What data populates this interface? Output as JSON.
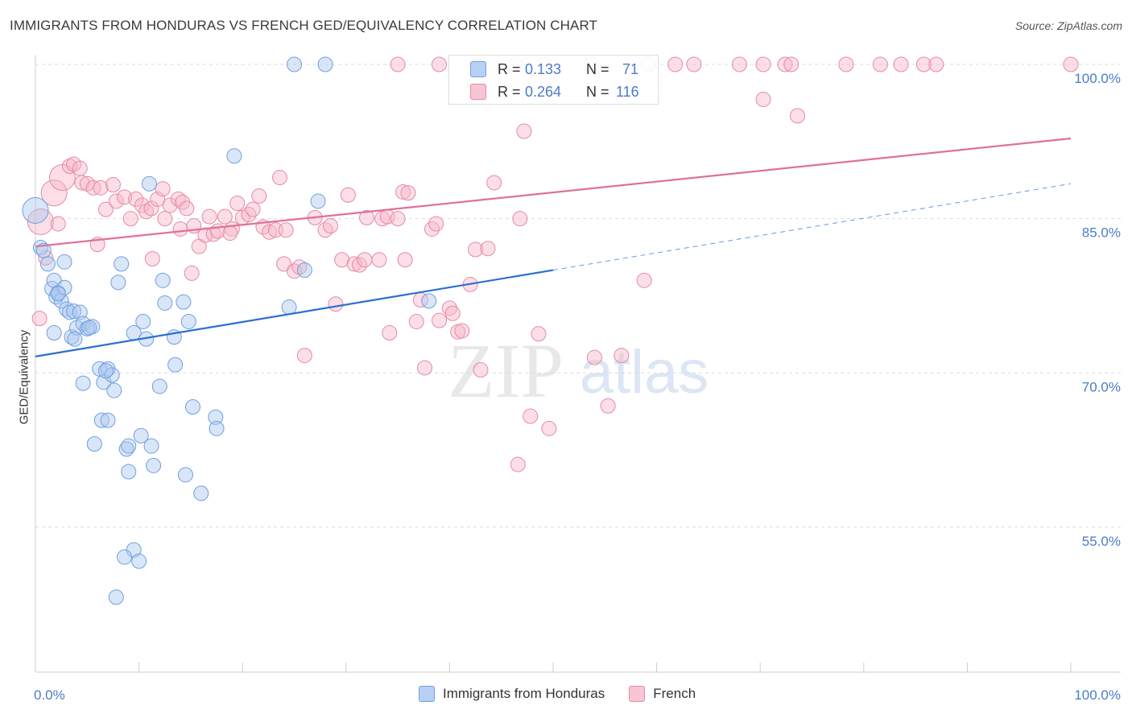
{
  "title": "IMMIGRANTS FROM HONDURAS VS FRENCH GED/EQUIVALENCY CORRELATION CHART",
  "source": "Source: ZipAtlas.com",
  "watermark": {
    "zip": "ZIP",
    "atlas": "atlas"
  },
  "stats": [
    {
      "r_label": "R =",
      "r_value": "0.133",
      "n_label": "N =",
      "n_value": "71",
      "color": "#6fa0de",
      "fill": "#b8d0f3"
    },
    {
      "r_label": "R =",
      "r_value": "0.264",
      "n_label": "N =",
      "n_value": "116",
      "color": "#e58aa6",
      "fill": "#f8c5d3"
    }
  ],
  "legend": [
    {
      "label": "Immigrants from Honduras",
      "color": "#6fa0de",
      "fill": "#b8d0f3"
    },
    {
      "label": "French",
      "color": "#e58aa6",
      "fill": "#f8c5d3"
    }
  ],
  "colors": {
    "blue_line": "#2a6fcf",
    "pink_line": "#e0709a",
    "axis_text": "#4a7cc9",
    "grid": "#dddddd"
  },
  "chart_data": {
    "type": "scatter",
    "title": "IMMIGRANTS FROM HONDURAS VS FRENCH GED/EQUIVALENCY CORRELATION CHART",
    "xlabel": "",
    "ylabel": "GED/Equivalency",
    "xlim": [
      0,
      100
    ],
    "ylim": [
      40,
      101
    ],
    "x_tick_labels": [
      "0.0%",
      "100.0%"
    ],
    "y_ticks": [
      55,
      70,
      85,
      100
    ],
    "y_tick_labels": [
      "55.0%",
      "70.0%",
      "85.0%",
      "100.0%"
    ],
    "grid": true,
    "legend_position": "bottom-center",
    "series": [
      {
        "name": "Immigrants from Honduras",
        "trend": {
          "x": [
            0,
            50
          ],
          "y": [
            71.6,
            80.0
          ]
        },
        "trend_dashed": {
          "x": [
            50,
            100
          ],
          "y": [
            80.0,
            88.4
          ]
        },
        "points": [
          [
            0,
            85.8,
            "L"
          ],
          [
            0.5,
            82.2
          ],
          [
            0.8,
            81.9
          ],
          [
            1.2,
            80.6
          ],
          [
            1.6,
            78.2
          ],
          [
            2.0,
            77.4
          ],
          [
            1.8,
            79.0
          ],
          [
            2.2,
            77.8
          ],
          [
            2.5,
            77.0
          ],
          [
            2.8,
            78.3
          ],
          [
            3.0,
            76.2
          ],
          [
            3.3,
            75.9
          ],
          [
            3.5,
            73.5
          ],
          [
            3.7,
            76.0
          ],
          [
            4.0,
            74.4
          ],
          [
            4.3,
            75.9
          ],
          [
            4.6,
            74.8
          ],
          [
            5.0,
            74.3
          ],
          [
            5.5,
            74.5
          ],
          [
            2.8,
            80.8
          ],
          [
            1.8,
            73.9
          ],
          [
            4.6,
            69.0
          ],
          [
            6.2,
            70.4
          ],
          [
            6.6,
            69.1
          ],
          [
            7.0,
            70.4
          ],
          [
            7.4,
            69.8
          ],
          [
            7.6,
            68.3
          ],
          [
            6.4,
            65.4
          ],
          [
            7.0,
            65.4
          ],
          [
            5.7,
            63.1
          ],
          [
            8.3,
            80.6
          ],
          [
            8.0,
            78.8
          ],
          [
            9.5,
            73.9
          ],
          [
            10.4,
            75.0
          ],
          [
            10.7,
            73.3
          ],
          [
            11.0,
            88.4
          ],
          [
            12.0,
            68.7
          ],
          [
            12.3,
            79.0
          ],
          [
            12.5,
            76.8
          ],
          [
            13.4,
            73.5
          ],
          [
            13.5,
            70.8
          ],
          [
            14.3,
            76.9
          ],
          [
            14.8,
            75.0
          ],
          [
            15.2,
            66.7
          ],
          [
            17.4,
            65.7
          ],
          [
            17.5,
            64.6
          ],
          [
            19.2,
            91.1
          ],
          [
            8.8,
            62.6
          ],
          [
            9.0,
            62.9
          ],
          [
            10.2,
            63.9
          ],
          [
            11.2,
            62.9
          ],
          [
            11.4,
            61.0
          ],
          [
            9.0,
            60.4
          ],
          [
            14.5,
            60.1
          ],
          [
            16.0,
            58.3
          ],
          [
            9.5,
            52.8
          ],
          [
            8.6,
            52.1
          ],
          [
            10.0,
            51.7
          ],
          [
            7.8,
            48.2
          ],
          [
            24.5,
            76.4
          ],
          [
            25.0,
            100
          ],
          [
            28.0,
            100
          ],
          [
            26.0,
            80.0
          ],
          [
            27.3,
            86.7
          ],
          [
            38.0,
            77.0
          ],
          [
            2.2,
            77.7
          ],
          [
            5.2,
            74.4
          ],
          [
            3.8,
            73.3
          ],
          [
            6.8,
            70.2
          ]
        ]
      },
      {
        "name": "French",
        "trend": {
          "x": [
            0,
            100
          ],
          "y": [
            82.3,
            92.8
          ]
        },
        "points": [
          [
            0.5,
            84.7,
            "L"
          ],
          [
            1.8,
            87.5,
            "L"
          ],
          [
            2.6,
            89.0,
            "L"
          ],
          [
            3.3,
            90.1
          ],
          [
            3.7,
            90.3
          ],
          [
            4.3,
            89.9
          ],
          [
            4.5,
            88.5
          ],
          [
            5.0,
            88.4
          ],
          [
            5.6,
            88.0
          ],
          [
            6.3,
            88.0
          ],
          [
            6.8,
            85.9
          ],
          [
            7.5,
            88.3
          ],
          [
            7.8,
            86.7
          ],
          [
            8.6,
            87.1
          ],
          [
            9.2,
            85.0
          ],
          [
            9.7,
            86.9
          ],
          [
            10.3,
            86.3
          ],
          [
            10.7,
            85.7
          ],
          [
            11.2,
            86.0
          ],
          [
            11.8,
            86.9
          ],
          [
            12.3,
            87.9
          ],
          [
            12.5,
            85.0
          ],
          [
            13.0,
            86.3
          ],
          [
            13.8,
            86.9
          ],
          [
            14.2,
            86.6
          ],
          [
            14.6,
            86.0
          ],
          [
            14.0,
            84.0
          ],
          [
            15.3,
            84.3
          ],
          [
            15.8,
            82.3
          ],
          [
            16.4,
            83.4
          ],
          [
            16.8,
            85.2
          ],
          [
            17.2,
            83.5
          ],
          [
            17.6,
            83.8
          ],
          [
            18.3,
            85.2
          ],
          [
            19.0,
            84.0
          ],
          [
            19.5,
            86.5
          ],
          [
            20.0,
            85.1
          ],
          [
            20.6,
            85.4
          ],
          [
            21.0,
            85.9
          ],
          [
            21.6,
            87.2
          ],
          [
            22.0,
            84.2
          ],
          [
            22.6,
            83.7
          ],
          [
            23.2,
            83.9
          ],
          [
            23.6,
            89.0
          ],
          [
            24.2,
            83.9
          ],
          [
            24.0,
            80.6
          ],
          [
            25.0,
            79.9
          ],
          [
            25.5,
            80.3
          ],
          [
            26.0,
            71.7
          ],
          [
            27.0,
            85.1
          ],
          [
            28.0,
            83.9
          ],
          [
            28.5,
            84.3
          ],
          [
            29.0,
            76.7
          ],
          [
            29.6,
            81.0
          ],
          [
            30.2,
            87.3
          ],
          [
            30.8,
            80.6
          ],
          [
            31.3,
            80.5
          ],
          [
            31.8,
            81.0
          ],
          [
            32.0,
            85.1
          ],
          [
            33.2,
            81.0
          ],
          [
            33.5,
            85.0
          ],
          [
            34.0,
            85.2
          ],
          [
            35.0,
            85.0
          ],
          [
            35.5,
            87.6
          ],
          [
            36.0,
            87.5
          ],
          [
            34.2,
            73.9
          ],
          [
            35.7,
            81.0
          ],
          [
            36.8,
            75.0
          ],
          [
            37.2,
            77.1
          ],
          [
            37.6,
            70.5
          ],
          [
            38.3,
            84.0
          ],
          [
            38.7,
            84.5
          ],
          [
            39.0,
            75.1
          ],
          [
            40.0,
            76.3
          ],
          [
            40.3,
            75.8
          ],
          [
            40.8,
            74.0
          ],
          [
            41.2,
            74.1
          ],
          [
            42.0,
            78.6
          ],
          [
            42.5,
            82.0
          ],
          [
            43.0,
            70.3
          ],
          [
            44.3,
            88.5
          ],
          [
            46.6,
            61.1
          ],
          [
            46.8,
            85.0
          ],
          [
            47.2,
            93.5
          ],
          [
            47.8,
            65.8
          ],
          [
            48.6,
            73.8
          ],
          [
            49.6,
            64.6
          ],
          [
            54.0,
            71.5
          ],
          [
            55.3,
            66.8
          ],
          [
            56.6,
            71.7
          ],
          [
            58.8,
            79.0
          ],
          [
            35.0,
            100
          ],
          [
            39.0,
            100
          ],
          [
            42.8,
            100
          ],
          [
            46.4,
            100
          ],
          [
            49.2,
            100
          ],
          [
            53.7,
            100
          ],
          [
            59.2,
            100
          ],
          [
            61.8,
            100
          ],
          [
            63.6,
            100
          ],
          [
            68.0,
            100
          ],
          [
            70.3,
            100
          ],
          [
            72.4,
            100
          ],
          [
            73.0,
            100
          ],
          [
            78.3,
            100
          ],
          [
            81.6,
            100
          ],
          [
            83.6,
            100
          ],
          [
            85.8,
            100
          ],
          [
            87.0,
            100
          ],
          [
            100,
            100
          ],
          [
            70.3,
            96.6
          ],
          [
            73.6,
            95.0
          ],
          [
            1.0,
            81.2
          ],
          [
            0.4,
            75.3
          ],
          [
            43.7,
            82.1
          ],
          [
            2.2,
            84.5
          ],
          [
            6.0,
            82.5
          ],
          [
            11.3,
            81.1
          ],
          [
            15.1,
            79.7
          ],
          [
            18.8,
            83.6
          ]
        ]
      }
    ]
  }
}
